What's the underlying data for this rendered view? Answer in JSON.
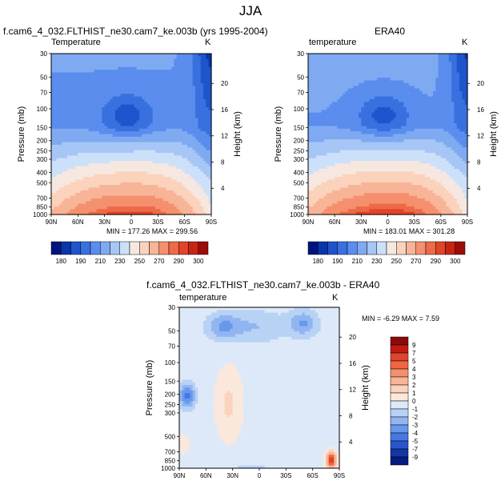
{
  "figure": {
    "title": "JJA",
    "panels": [
      {
        "id": "model",
        "title": "f.cam6_4_032.FLTHIST_ne30.cam7_ke.003b (yrs 1995-2004)",
        "field_label": "Temperature",
        "units": "K",
        "min_max": "MIN = 177.26  MAX = 299.56"
      },
      {
        "id": "obs",
        "title": "ERA40",
        "field_label": "temperature",
        "units": "K",
        "min_max": "MIN = 183.01  MAX = 301.28"
      },
      {
        "id": "diff",
        "title": "f.cam6_4_032.FLTHIST_ne30.cam7_ke.003b - ERA40",
        "field_label": "temperature",
        "units": "K",
        "min_max": "MIN =  -6.29  MAX =   7.59"
      }
    ],
    "colorbars": {
      "abs_labels": [
        "180",
        "190",
        "210",
        "230",
        "250",
        "270",
        "290",
        "300"
      ],
      "abs_colors": [
        "#00137e",
        "#0a35a8",
        "#1e54cc",
        "#3870e0",
        "#5a8ded",
        "#7faaf2",
        "#a6c6f6",
        "#cde0fa",
        "#f6e8e0",
        "#fbd2bc",
        "#f8b496",
        "#f4906e",
        "#ed6a48",
        "#e0442a",
        "#c82414",
        "#9c0c08"
      ],
      "diff_labels": [
        "9",
        "7",
        "5",
        "4",
        "3",
        "2",
        "1",
        "0",
        "-1",
        "-2",
        "-3",
        "-4",
        "-5",
        "-7",
        "-9"
      ],
      "diff_colors": [
        "#8c0a08",
        "#c01a12",
        "#e0442a",
        "#ee6644",
        "#f4906e",
        "#f8b496",
        "#fbd2bc",
        "#fbe8dc",
        "#dde9f8",
        "#b8d2f6",
        "#90b5f2",
        "#6898ec",
        "#4478e2",
        "#2856cc",
        "#1236a6",
        "#071a80"
      ]
    }
  },
  "chart_data": [
    {
      "type": "heatmap",
      "title": "f.cam6_4_032.FLTHIST_ne30.cam7_ke.003b (yrs 1995-2004)",
      "subtitle": "Temperature",
      "units": "K",
      "xlabel": "",
      "ylabel": "Pressure (mb)",
      "y2label": "Height (km)",
      "x_ticks": [
        "90N",
        "60N",
        "30N",
        "0",
        "30S",
        "60S",
        "90S"
      ],
      "y_ticks": [
        30,
        50,
        70,
        100,
        150,
        200,
        250,
        300,
        400,
        500,
        700,
        850,
        1000
      ],
      "y2_ticks": [
        20,
        16,
        12,
        8,
        4
      ],
      "ylim": [
        1000,
        30
      ],
      "y_scale": "log",
      "min": 177.26,
      "max": 299.56,
      "contour_levels": [
        180,
        190,
        200,
        210,
        220,
        230,
        240,
        250,
        260,
        270,
        280,
        290,
        295,
        300
      ]
    },
    {
      "type": "heatmap",
      "title": "ERA40",
      "subtitle": "temperature",
      "units": "K",
      "xlabel": "",
      "ylabel": "Pressure (mb)",
      "y2label": "Height (km)",
      "x_ticks": [
        "90N",
        "60N",
        "30N",
        "0",
        "30S",
        "60S",
        "90S"
      ],
      "y_ticks": [
        30,
        50,
        70,
        100,
        150,
        200,
        250,
        300,
        400,
        500,
        700,
        850,
        1000
      ],
      "y2_ticks": [
        20,
        16,
        12,
        8,
        4
      ],
      "ylim": [
        1000,
        30
      ],
      "y_scale": "log",
      "min": 183.01,
      "max": 301.28,
      "contour_levels": [
        180,
        190,
        200,
        210,
        220,
        230,
        240,
        250,
        260,
        270,
        280,
        290,
        295,
        300
      ]
    },
    {
      "type": "heatmap",
      "title": "f.cam6_4_032.FLTHIST_ne30.cam7_ke.003b - ERA40",
      "subtitle": "temperature",
      "units": "K",
      "xlabel": "",
      "ylabel": "Pressure (mb)",
      "y2label": "Height (km)",
      "x_ticks": [
        "90N",
        "60N",
        "30N",
        "0",
        "30S",
        "60S",
        "90S"
      ],
      "y_ticks": [
        30,
        50,
        70,
        100,
        150,
        200,
        250,
        300,
        500,
        700,
        850,
        1000
      ],
      "y2_ticks": [
        20,
        16,
        12,
        8,
        4
      ],
      "ylim": [
        1000,
        30
      ],
      "y_scale": "log",
      "min": -6.29,
      "max": 7.59,
      "contour_levels": [
        -9,
        -7,
        -5,
        -4,
        -3,
        -2,
        -1,
        0,
        1,
        2,
        3,
        4,
        5,
        7,
        9
      ]
    }
  ]
}
